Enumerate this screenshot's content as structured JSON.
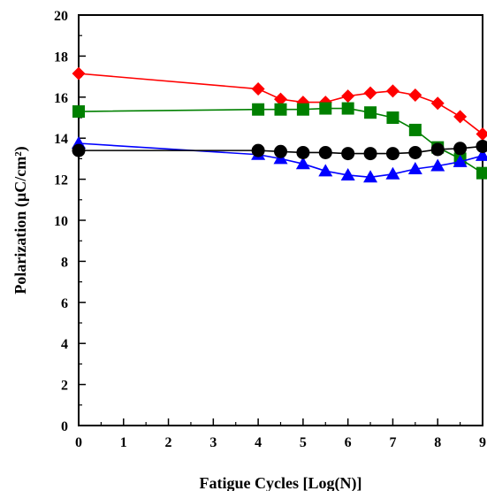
{
  "chart_data": {
    "type": "line",
    "title": "",
    "xlabel": "Fatigue Cycles [Log(N)]",
    "ylabel": "Polarization (µC/cm²)",
    "xlim": [
      0,
      9
    ],
    "ylim": [
      0,
      20
    ],
    "x_ticks": [
      "0",
      "1",
      "2",
      "3",
      "4",
      "5",
      "6",
      "7",
      "8",
      "9"
    ],
    "y_ticks": [
      "0",
      "2",
      "4",
      "6",
      "8",
      "10",
      "12",
      "14",
      "16",
      "18",
      "20"
    ],
    "grid": false,
    "legend": "none",
    "x": [
      0,
      4,
      4.5,
      5,
      5.5,
      6,
      6.5,
      7,
      7.5,
      8,
      8.5,
      9
    ],
    "series": [
      {
        "color": "#ff0000",
        "marker": "diamond",
        "values": [
          17.15,
          16.4,
          15.9,
          15.75,
          15.75,
          16.05,
          16.2,
          16.3,
          16.1,
          15.7,
          15.05,
          14.2
        ]
      },
      {
        "color": "#008000",
        "marker": "square",
        "values": [
          15.3,
          15.4,
          15.4,
          15.4,
          15.45,
          15.45,
          15.25,
          15.0,
          14.4,
          13.55,
          13.0,
          12.3
        ]
      },
      {
        "color": "#0000ff",
        "marker": "triangle",
        "values": [
          13.75,
          13.2,
          13.0,
          12.75,
          12.4,
          12.2,
          12.1,
          12.25,
          12.5,
          12.65,
          12.85,
          13.15
        ]
      },
      {
        "color": "#000000",
        "marker": "circle",
        "values": [
          13.4,
          13.4,
          13.35,
          13.3,
          13.3,
          13.25,
          13.25,
          13.25,
          13.3,
          13.45,
          13.5,
          13.6
        ]
      }
    ]
  }
}
